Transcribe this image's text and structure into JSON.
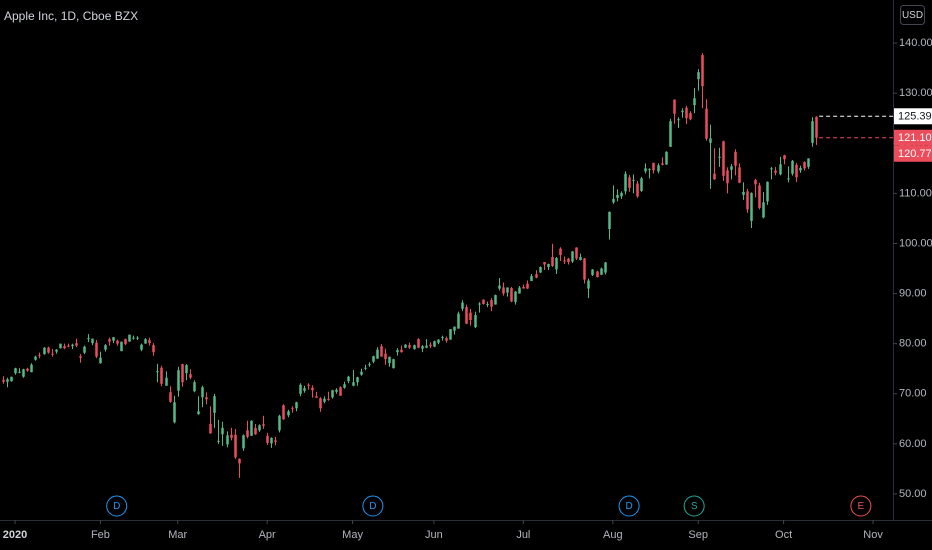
{
  "chart_data": {
    "type": "candlestick",
    "title": "Apple Inc, 1D, Cboe BZX",
    "currency": "USD",
    "up_color": "#53b987",
    "down_color": "#eb4d5c",
    "open": [
      72.8,
      72.4,
      72.5,
      74.1,
      74.3,
      73.4,
      75.0,
      74.3,
      76.8,
      77.7,
      77.9,
      79.2,
      78.0,
      78.4,
      79.1,
      79.5,
      79.6,
      79.5,
      80.1,
      77.5,
      78.2,
      81.1,
      80.1,
      80.2,
      76.1,
      78.8,
      80.9,
      80.6,
      80.6,
      78.5,
      80.9,
      80.4,
      81.0,
      81.2,
      78.8,
      80.0,
      80.7,
      79.7,
      74.3,
      75.2,
      71.6,
      70.3,
      64.3,
      70.6,
      75.9,
      74.1,
      73.9,
      70.5,
      65.9,
      69.3,
      69.3,
      63.99,
      66.2,
      60.5,
      61.9,
      59.9,
      61.8,
      61.8,
      57.0,
      59.1,
      62.7,
      61.6,
      63.2,
      62.7,
      63.9,
      61.6,
      60.1,
      60.7,
      62.7,
      67.7,
      65.7,
      67.2,
      67.1,
      70.0,
      70.6,
      71.8,
      71.2,
      69.5,
      69.1,
      68.4,
      68.97,
      69.3,
      70.4,
      71.3,
      71.2,
      72.5,
      71.6,
      72.3,
      73.8,
      75.1,
      75.8,
      76.4,
      77.0,
      79.5,
      78.0,
      76.1,
      75.1,
      78.3,
      78.8,
      79.2,
      79.7,
      78.9,
      80.9,
      79.0,
      79.2,
      79.8,
      79.4,
      80.2,
      81.2,
      81.1,
      80.8,
      82.6,
      83.0,
      86.97,
      87.3,
      86.2,
      83.3,
      87.9,
      88.8,
      87.85,
      88.7,
      87.8,
      91.0,
      91.25,
      90.2,
      91.1,
      88.3,
      90.0,
      91.3,
      91.96,
      92.5,
      93.85,
      94.2,
      96.3,
      95.3,
      97.3,
      94.84,
      98.99,
      96.6,
      96.99,
      96.4,
      99.2,
      96.7,
      96.99,
      90.99,
      93.7,
      94.4,
      93.75,
      94.2,
      102.9,
      108.2,
      109.1,
      109.4,
      110.4,
      113.2,
      112.6,
      111.97,
      110.5,
      114.4,
      114.8,
      116.1,
      114.4,
      115.98,
      115.75,
      119.3,
      128.7,
      124.7,
      126.2,
      127.1,
      126.0,
      127.6,
      132.8,
      137.6,
      126.9,
      120.1,
      113.95,
      117.3,
      120.4,
      114.6,
      114.7,
      118.3,
      115.2,
      109.7,
      110.4,
      104.5,
      112.7,
      111.6,
      105.2,
      108.4,
      115.0,
      114.55,
      113.8,
      117.6,
      112.9,
      113.9,
      115.7,
      114.6,
      116.25,
      115.3,
      120.1,
      125.3
    ],
    "high": [
      73.5,
      73.2,
      73.4,
      75.2,
      75.1,
      75.0,
      75.2,
      76.1,
      77.6,
      78.2,
      79.3,
      79.4,
      78.9,
      78.9,
      80.0,
      80.0,
      80.0,
      80.0,
      81.0,
      77.9,
      79.6,
      81.9,
      81.0,
      80.7,
      78.4,
      79.9,
      81.2,
      81.3,
      80.8,
      80.4,
      81.0,
      81.8,
      81.6,
      81.5,
      80.0,
      81.1,
      81.2,
      80.1,
      76.0,
      75.6,
      74.5,
      71.5,
      69.6,
      75.4,
      76.0,
      75.9,
      74.9,
      72.7,
      69.5,
      71.6,
      70.3,
      67.5,
      69.98,
      64.8,
      64.4,
      62.5,
      63.2,
      62.96,
      57.1,
      61.9,
      64.6,
      64.7,
      63.97,
      63.9,
      65.6,
      62.2,
      61.3,
      61.4,
      65.8,
      67.9,
      66.8,
      67.5,
      68.4,
      72.1,
      71.6,
      72.1,
      71.7,
      70.4,
      69.3,
      69.5,
      70.4,
      70.8,
      71.1,
      71.5,
      72.4,
      73.6,
      74.75,
      73.4,
      75.0,
      75.8,
      76.3,
      77.6,
      79.3,
      79.9,
      78.99,
      77.4,
      76.98,
      79.1,
      79.6,
      79.9,
      80.2,
      79.8,
      81.1,
      79.7,
      80.9,
      80.3,
      80.6,
      80.9,
      81.6,
      81.4,
      82.9,
      83.4,
      86.4,
      88.7,
      87.8,
      86.95,
      86.4,
      88.3,
      88.85,
      88.4,
      89.1,
      89.8,
      93.1,
      92.2,
      91.25,
      91.3,
      90.5,
      91.5,
      91.8,
      92.6,
      93.9,
      94.65,
      95.4,
      96.3,
      95.98,
      99.95,
      97.3,
      99.25,
      97.4,
      97.15,
      98.5,
      99.25,
      97.97,
      97.1,
      92.97,
      94.9,
      94.55,
      95.2,
      96.3,
      106.4,
      111.6,
      110.8,
      110.4,
      114.4,
      113.7,
      113.8,
      112.5,
      113.3,
      116.0,
      115.0,
      116.1,
      116.0,
      117.2,
      118.4,
      124.9,
      128.8,
      125.2,
      126.99,
      127.5,
      126.4,
      131.0,
      134.8,
      137.98,
      128.8,
      123.7,
      118.99,
      119.1,
      120.5,
      115.2,
      115.9,
      118.8,
      116.0,
      112.2,
      110.9,
      110.2,
      112.9,
      112.1,
      110.25,
      112.4,
      115.3,
      115.3,
      117.3,
      117.7,
      115.4,
      116.65,
      116.1,
      115.55,
      116.4,
      117.0,
      125.2,
      125.39
    ],
    "low": [
      72.0,
      71.3,
      72.4,
      73.8,
      74.1,
      73.2,
      74.4,
      74.3,
      76.6,
      77.1,
      77.8,
      78.0,
      77.4,
      78.0,
      79.0,
      78.9,
      79.3,
      78.9,
      79.3,
      76.2,
      77.9,
      80.3,
      79.7,
      77.1,
      76.0,
      78.4,
      79.6,
      80.1,
      79.6,
      78.5,
      79.7,
      80.4,
      80.8,
      80.7,
      78.5,
      80.0,
      79.6,
      77.6,
      72.3,
      71.5,
      71.6,
      68.2,
      64.1,
      69.4,
      71.4,
      72.7,
      72.9,
      70.3,
      65.8,
      67.3,
      67.9,
      62.0,
      63.2,
      60.0,
      59.6,
      59.3,
      60.7,
      57.0,
      53.2,
      58.6,
      61.1,
      61.6,
      61.8,
      62.4,
      63.0,
      59.8,
      59.2,
      59.7,
      62.3,
      64.8,
      65.3,
      66.2,
      66.5,
      69.5,
      70.2,
      70.8,
      69.2,
      69.2,
      66.4,
      68.1,
      68.6,
      69.0,
      69.99,
      69.6,
      71.0,
      72.1,
      71.5,
      71.6,
      73.6,
      74.7,
      75.4,
      76.1,
      77.0,
      77.7,
      75.8,
      75.4,
      75.05,
      77.6,
      78.2,
      79.1,
      78.97,
      78.8,
      79.1,
      78.3,
      79.1,
      79.1,
      79.3,
      79.9,
      80.6,
      80.2,
      80.8,
      81.8,
      83.0,
      86.5,
      83.9,
      83.6,
      83.1,
      86.2,
      87.8,
      87.3,
      86.5,
      87.8,
      90.6,
      89.6,
      89.4,
      88.3,
      87.8,
      90.0,
      90.98,
      90.9,
      92.5,
      93.06,
      94.1,
      94.7,
      94.7,
      95.3,
      93.9,
      96.5,
      95.9,
      95.8,
      96.1,
      96.7,
      96.6,
      92.0,
      89.1,
      93.5,
      93.2,
      93.7,
      93.8,
      100.8,
      107.9,
      108.4,
      108.9,
      109.8,
      110.3,
      110.0,
      109.1,
      110.3,
      113.96,
      113.0,
      113.96,
      114.0,
      115.6,
      115.7,
      119.25,
      123.9,
      123.05,
      125.1,
      123.8,
      124.6,
      126.0,
      130.5,
      127.0,
      120.5,
      110.9,
      112.7,
      115.3,
      112.5,
      110.0,
      112.8,
      113.6,
      112.04,
      108.7,
      106.1,
      103.1,
      109.2,
      106.8,
      105.0,
      107.7,
      112.8,
      113.6,
      113.6,
      115.8,
      112.2,
      113.55,
      112.25,
      114.1,
      114.6,
      114.9,
      119.3,
      119.65
    ],
    "close": [
      72.4,
      72.9,
      73.4,
      75.1,
      74.4,
      74.9,
      74.6,
      75.8,
      77.4,
      77.6,
      79.2,
      78.2,
      77.8,
      78.8,
      80.0,
      79.1,
      79.4,
      79.8,
      79.6,
      77.2,
      79.4,
      81.1,
      81.0,
      77.4,
      77.2,
      79.7,
      80.4,
      81.3,
      80.0,
      80.4,
      79.9,
      81.8,
      81.2,
      81.2,
      79.8,
      80.9,
      80.1,
      78.3,
      74.5,
      72.0,
      73.2,
      68.4,
      68.3,
      74.7,
      72.3,
      75.7,
      73.2,
      72.3,
      66.5,
      71.3,
      68.9,
      62.1,
      69.5,
      60.6,
      63.2,
      61.7,
      61.2,
      57.3,
      56.1,
      61.7,
      61.4,
      64.6,
      61.9,
      63.7,
      63.6,
      60.2,
      61.2,
      60.4,
      65.6,
      64.9,
      66.5,
      67.0,
      68.3,
      71.8,
      71.1,
      71.7,
      70.7,
      69.2,
      67.1,
      69.0,
      68.8,
      70.7,
      70.8,
      69.6,
      71.9,
      73.4,
      72.3,
      73.3,
      74.4,
      75.2,
      75.9,
      77.5,
      78.8,
      77.4,
      76.9,
      77.4,
      76.9,
      78.7,
      78.3,
      79.8,
      79.2,
      79.7,
      79.2,
      79.5,
      79.6,
      79.5,
      80.5,
      80.8,
      81.3,
      80.6,
      82.9,
      83.4,
      86.0,
      88.2,
      83.97,
      84.7,
      85.7,
      88.0,
      87.9,
      87.9,
      87.4,
      89.7,
      91.6,
      90.0,
      91.2,
      88.4,
      90.4,
      91.2,
      91.0,
      91.0,
      93.5,
      93.2,
      95.3,
      95.8,
      95.9,
      95.5,
      97.1,
      97.7,
      96.5,
      96.3,
      98.4,
      97.0,
      97.3,
      92.8,
      92.6,
      94.8,
      93.3,
      95.0,
      96.2,
      106.3,
      108.9,
      109.7,
      110.1,
      113.9,
      111.1,
      112.7,
      109.4,
      113.0,
      115.0,
      114.9,
      114.6,
      115.6,
      115.7,
      118.3,
      124.4,
      125.9,
      124.8,
      126.5,
      125.0,
      124.8,
      129.0,
      134.2,
      131.4,
      120.9,
      120.96,
      112.8,
      117.3,
      113.5,
      112.0,
      115.4,
      115.5,
      112.1,
      110.3,
      106.8,
      110.1,
      111.8,
      107.1,
      108.2,
      112.3,
      115.0,
      114.1,
      115.8,
      116.8,
      113.0,
      116.5,
      113.2,
      115.1,
      114.97,
      116.97,
      124.4,
      121.1
    ],
    "xlim": [
      -0.7,
      218.9
    ],
    "xticks": [
      {
        "value": 3,
        "label": "2020"
      },
      {
        "value": 24,
        "label": "Feb"
      },
      {
        "value": 43,
        "label": "Mar"
      },
      {
        "value": 65,
        "label": "Apr"
      },
      {
        "value": 86,
        "label": "May"
      },
      {
        "value": 106,
        "label": "Jun"
      },
      {
        "value": 128,
        "label": "Jul"
      },
      {
        "value": 150,
        "label": "Aug"
      },
      {
        "value": 171,
        "label": "Sep"
      },
      {
        "value": 192,
        "label": "Oct"
      },
      {
        "value": 214,
        "label": "Nov"
      }
    ],
    "ylim": [
      44.8,
      148.6
    ],
    "yticks": [
      {
        "value": 50,
        "label": "50.00"
      },
      {
        "value": 60,
        "label": "60.00"
      },
      {
        "value": 70,
        "label": "70.00"
      },
      {
        "value": 80,
        "label": "80.00"
      },
      {
        "value": 90,
        "label": "90.00"
      },
      {
        "value": 100,
        "label": "100.00"
      },
      {
        "value": 110,
        "label": "110.00"
      },
      {
        "value": 120,
        "label": "120.00"
      },
      {
        "value": 130,
        "label": "130.00"
      },
      {
        "value": 140,
        "label": "140.00"
      }
    ],
    "price_lines": [
      {
        "value": 125.39,
        "label": "125.39",
        "color": "#ffffff",
        "dashed": true
      },
      {
        "value": 121.1,
        "label": "121.10",
        "color": "#eb4d5c",
        "dashed": true
      },
      {
        "value": 120.77,
        "label": "120.77",
        "color": "#eb4d5c",
        "dashed": false
      }
    ],
    "events": [
      {
        "label": "D",
        "index": 28,
        "color": "#2196f3"
      },
      {
        "label": "D",
        "index": 91,
        "color": "#2196f3"
      },
      {
        "label": "D",
        "index": 154,
        "color": "#2196f3"
      },
      {
        "label": "S",
        "index": 170,
        "color": "#26a69a"
      },
      {
        "label": "E",
        "index": 211,
        "color": "#ef5350"
      }
    ]
  }
}
